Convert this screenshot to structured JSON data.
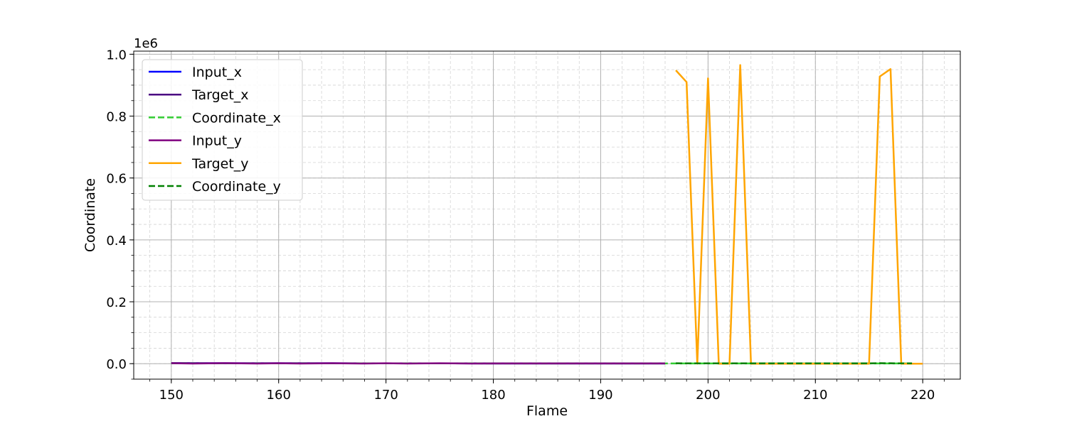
{
  "chart_data": {
    "type": "line",
    "xlabel": "Flame",
    "ylabel": "Coordinate",
    "y_offset_label": "1e6",
    "y_scale_factor": 1000000,
    "xlim": [
      146.5,
      223.5
    ],
    "ylim": [
      -50000,
      1010000
    ],
    "xticks": [
      150,
      160,
      170,
      180,
      190,
      200,
      210,
      220
    ],
    "yticks": [
      0,
      200000,
      400000,
      600000,
      800000,
      1000000
    ],
    "ytick_labels": [
      "0.0",
      "0.2",
      "0.4",
      "0.6",
      "0.8",
      "1.0"
    ],
    "x_minor_step": 2,
    "y_minor_step": 50000,
    "grid": "major solid, minor dashed",
    "legend_position": "upper-left",
    "series": [
      {
        "name": "Input_x",
        "color": "#0000ff",
        "dash": "solid",
        "points": [
          [
            150,
            1500
          ],
          [
            155,
            1400
          ],
          [
            160,
            1300
          ],
          [
            165,
            1200
          ],
          [
            170,
            1100
          ],
          [
            175,
            1000
          ],
          [
            180,
            900
          ],
          [
            185,
            900
          ],
          [
            190,
            900
          ],
          [
            196,
            900
          ]
        ]
      },
      {
        "name": "Target_x",
        "color": "#4b0082",
        "dash": "solid",
        "points": [
          [
            150,
            1500
          ],
          [
            155,
            1400
          ],
          [
            160,
            1300
          ],
          [
            165,
            1200
          ],
          [
            170,
            1100
          ],
          [
            175,
            1000
          ],
          [
            180,
            900
          ],
          [
            185,
            900
          ],
          [
            190,
            900
          ],
          [
            196,
            900
          ]
        ]
      },
      {
        "name": "Coordinate_x",
        "color": "#32cd32",
        "dash": "dashed",
        "points": [
          [
            150,
            1200
          ],
          [
            160,
            1100
          ],
          [
            170,
            1000
          ],
          [
            180,
            900
          ],
          [
            190,
            900
          ],
          [
            200,
            800
          ],
          [
            210,
            800
          ],
          [
            219,
            800
          ]
        ]
      },
      {
        "name": "Input_y",
        "color": "#800080",
        "dash": "solid",
        "points": [
          [
            150,
            1500
          ],
          [
            152,
            500
          ],
          [
            155,
            1500
          ],
          [
            158,
            500
          ],
          [
            160,
            1200
          ],
          [
            162,
            600
          ],
          [
            165,
            1300
          ],
          [
            168,
            500
          ],
          [
            170,
            1200
          ],
          [
            172,
            500
          ],
          [
            175,
            1300
          ],
          [
            178,
            600
          ],
          [
            180,
            900
          ],
          [
            185,
            800
          ],
          [
            190,
            800
          ],
          [
            196,
            800
          ]
        ]
      },
      {
        "name": "Target_y",
        "color": "#ffa500",
        "dash": "solid",
        "points": [
          [
            197,
            948000
          ],
          [
            198,
            910000
          ],
          [
            199,
            0
          ],
          [
            200,
            922000
          ],
          [
            201,
            0
          ],
          [
            202,
            0
          ],
          [
            203,
            965000
          ],
          [
            204,
            0
          ],
          [
            205,
            0
          ],
          [
            206,
            0
          ],
          [
            207,
            0
          ],
          [
            208,
            0
          ],
          [
            209,
            0
          ],
          [
            210,
            0
          ],
          [
            211,
            0
          ],
          [
            212,
            0
          ],
          [
            213,
            0
          ],
          [
            214,
            0
          ],
          [
            215,
            0
          ],
          [
            216,
            928000
          ],
          [
            217,
            952000
          ],
          [
            218,
            0
          ],
          [
            219,
            0
          ],
          [
            220,
            0
          ]
        ]
      },
      {
        "name": "Coordinate_y",
        "color": "#008000",
        "dash": "dashed",
        "points": [
          [
            197,
            1200
          ],
          [
            200,
            1000
          ],
          [
            205,
            1000
          ],
          [
            210,
            1000
          ],
          [
            215,
            1000
          ],
          [
            216,
            1500
          ],
          [
            217,
            1200
          ],
          [
            219,
            1000
          ]
        ]
      }
    ]
  }
}
